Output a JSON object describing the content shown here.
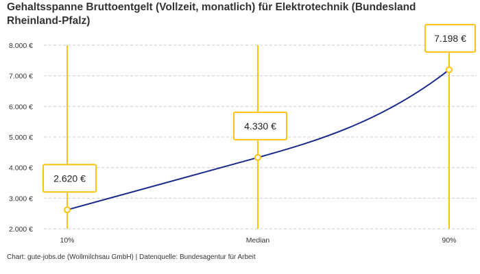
{
  "chart_data": {
    "type": "line",
    "title": "Gehaltsspanne Bruttoentgelt (Vollzeit, monatlich) für Elektrotechnik (Bundesland Rheinland-Pfalz)",
    "categories": [
      "10%",
      "Median",
      "90%"
    ],
    "values": [
      2620,
      4330,
      7198
    ],
    "data_labels": [
      "2.620 €",
      "4.330 €",
      "7.198 €"
    ],
    "yticks": [
      2000,
      3000,
      4000,
      5000,
      6000,
      7000,
      8000
    ],
    "ytick_labels": [
      "2.000 €",
      "3.000 €",
      "4.000 €",
      "5.000 €",
      "6.000 €",
      "7.000 €",
      "8.000 €"
    ],
    "ylim": [
      2000,
      8000
    ],
    "grid": true,
    "colors": {
      "line": "#1a2a8c",
      "marker": "#ffc20e",
      "grid": "#cccccc"
    }
  },
  "credit": "Chart: gute-jobs.de (Wollmilchsau GmbH) | Datenquelle: Bundesagentur für Arbeit"
}
